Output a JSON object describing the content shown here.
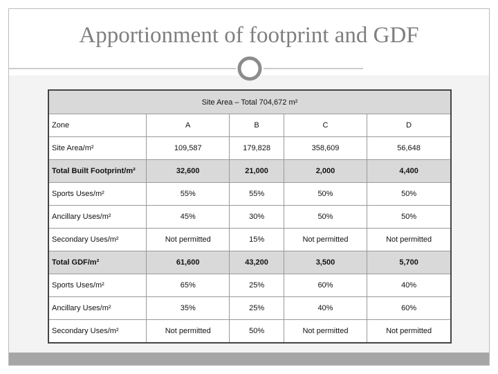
{
  "header": {
    "title": "Apportionment of footprint and GDF"
  },
  "table": {
    "caption": "Site Area – Total 704,672 m²",
    "columns": [
      "Zone",
      "A",
      "B",
      "C",
      "D"
    ],
    "rows": [
      [
        "Site Area/m²",
        "109,587",
        "179,828",
        "358,609",
        "56,648"
      ],
      [
        "Total Built Footprint/m²",
        "32,600",
        "21,000",
        "2,000",
        "4,400"
      ],
      [
        "Sports Uses/m²",
        "55%",
        "55%",
        "50%",
        "50%"
      ],
      [
        "Ancillary Uses/m²",
        "45%",
        "30%",
        "50%",
        "50%"
      ],
      [
        "Secondary Uses/m²",
        "Not permitted",
        "15%",
        "Not permitted",
        "Not permitted"
      ],
      [
        "Total GDF/m²",
        "61,600",
        "43,200",
        "3,500",
        "5,700"
      ],
      [
        "Sports Uses/m²",
        "65%",
        "25%",
        "60%",
        "40%"
      ],
      [
        "Ancillary Uses/m²",
        "35%",
        "25%",
        "40%",
        "60%"
      ],
      [
        "Secondary Uses/m²",
        "Not permitted",
        "50%",
        "Not permitted",
        "Not permitted"
      ]
    ]
  }
}
